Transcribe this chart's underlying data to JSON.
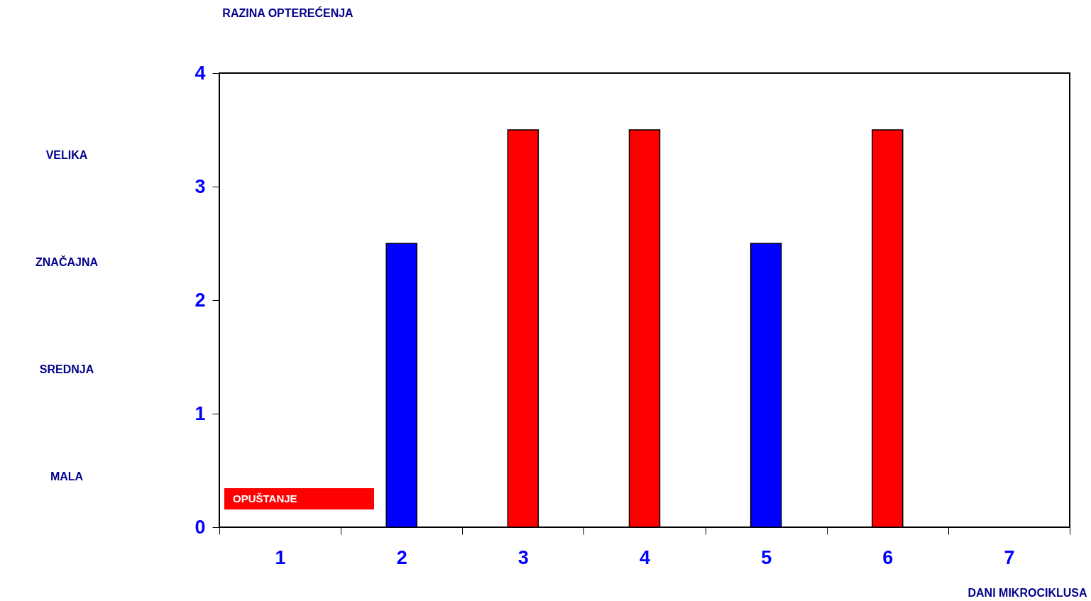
{
  "chart_data": {
    "type": "bar",
    "xlabel": "DANI MIKROCIKLUSA",
    "ylabel": "RAZINA  OPTEREĆENJA",
    "categories": [
      "1",
      "2",
      "3",
      "4",
      "5",
      "6",
      "7"
    ],
    "values": [
      null,
      2.5,
      3.5,
      3.5,
      2.5,
      3.5,
      null
    ],
    "colors": [
      "#ff0000",
      "#0000ff",
      "#ff0000",
      "#ff0000",
      "#0000ff",
      "#ff0000",
      "#ff0000"
    ],
    "ylim": [
      0,
      4
    ],
    "yticks": [
      0,
      1,
      2,
      3,
      4
    ],
    "grid": false,
    "annotations": [
      "VELIKA",
      "ZNAČAJNA",
      "SREDNJA",
      "MALA",
      "OPUŠTANJE"
    ]
  }
}
